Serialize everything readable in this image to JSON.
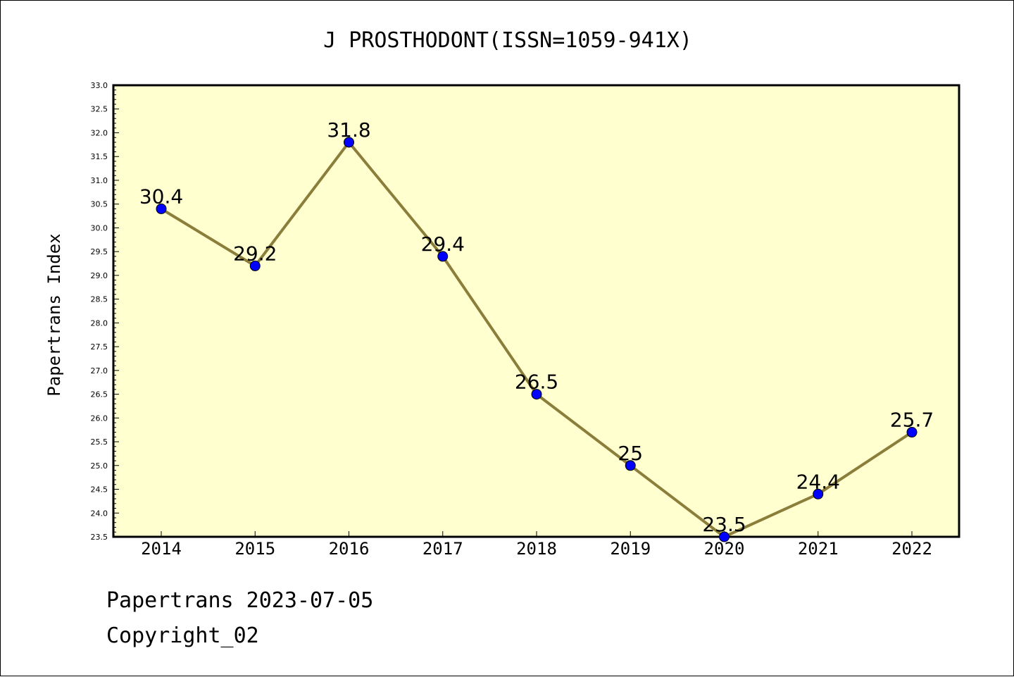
{
  "chart_data": {
    "type": "line",
    "title": "J PROSTHODONT(ISSN=1059-941X)",
    "ylabel": "Papertrans Index",
    "xlabel": "",
    "categories": [
      "2014",
      "2015",
      "2016",
      "2017",
      "2018",
      "2019",
      "2020",
      "2021",
      "2022"
    ],
    "series": [
      {
        "values": [
          30.4,
          29.2,
          31.8,
          29.4,
          26.5,
          25,
          23.5,
          24.4,
          25.7
        ],
        "data_labels": [
          "30.4",
          "29.2",
          "31.8",
          "29.4",
          "26.5",
          "25",
          "23.5",
          "24.4",
          "25.7"
        ]
      }
    ],
    "ylim": [
      23.5,
      33.0
    ],
    "yticks": [
      "23.5",
      "24.0",
      "24.5",
      "25.0",
      "25.5",
      "26.0",
      "26.5",
      "27.0",
      "27.5",
      "28.0",
      "28.5",
      "29.0",
      "29.5",
      "30.0",
      "30.5",
      "31.0",
      "31.5",
      "32.0",
      "32.5",
      "33.0"
    ],
    "grid": false,
    "colors": {
      "plot_background": "#ffffd0",
      "line": "#8b7d3a",
      "marker": "#0000ff"
    }
  },
  "footer": {
    "line1": "Papertrans 2023-07-05",
    "line2": "Copyright_02"
  }
}
